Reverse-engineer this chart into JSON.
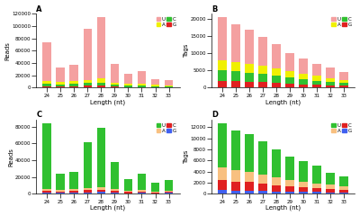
{
  "A": {
    "title": "A",
    "ylabel": "Reads",
    "xlabel": "Length (nt)",
    "lengths": [
      24,
      25,
      26,
      27,
      28,
      29,
      30,
      31,
      32,
      33
    ],
    "U": [
      63000,
      23000,
      26000,
      84000,
      100000,
      30000,
      17000,
      21000,
      10000,
      8000
    ],
    "A": [
      5000,
      4000,
      4500,
      5000,
      6000,
      3500,
      2500,
      2500,
      2000,
      1800
    ],
    "C": [
      4000,
      3500,
      4000,
      4500,
      5000,
      3000,
      2000,
      2200,
      1500,
      1200
    ],
    "G": [
      2000,
      2000,
      2500,
      3000,
      3500,
      1500,
      1200,
      1200,
      800,
      600
    ],
    "colors": {
      "U": "#F4A0A0",
      "A": "#F0F000",
      "C": "#30C030",
      "G": "#E02020"
    }
  },
  "B": {
    "title": "B",
    "ylabel": "Tags",
    "xlabel": "Length (nt)",
    "lengths": [
      24,
      25,
      26,
      27,
      28,
      29,
      30,
      31,
      32,
      33
    ],
    "U": [
      12500,
      11000,
      10000,
      8500,
      7000,
      5500,
      4500,
      3500,
      3000,
      2200
    ],
    "A": [
      3000,
      2800,
      2600,
      2400,
      2200,
      1800,
      1600,
      1400,
      1200,
      1000
    ],
    "C": [
      3000,
      2800,
      2600,
      2400,
      2000,
      1700,
      1400,
      1200,
      1000,
      800
    ],
    "G": [
      2000,
      1900,
      1800,
      1600,
      1400,
      1200,
      1000,
      800,
      600,
      500
    ],
    "colors": {
      "U": "#F4A0A0",
      "A": "#F0F000",
      "C": "#30C030",
      "G": "#E02020"
    }
  },
  "C": {
    "title": "C",
    "ylabel": "Reads",
    "xlabel": "Length (nt)",
    "lengths": [
      24,
      25,
      26,
      27,
      28,
      29,
      30,
      31,
      32,
      33
    ],
    "U": [
      78000,
      19000,
      21000,
      55000,
      71000,
      33000,
      14500,
      19500,
      11000,
      13500
    ],
    "A": [
      2000,
      1500,
      1800,
      2000,
      2500,
      1800,
      1200,
      1500,
      1000,
      1200
    ],
    "C": [
      2500,
      1800,
      2000,
      2500,
      3000,
      2000,
      1200,
      1800,
      1000,
      1300
    ],
    "G": [
      1500,
      1200,
      1500,
      1800,
      2000,
      1500,
      800,
      1200,
      700,
      900
    ],
    "colors": {
      "U": "#30C030",
      "A": "#F8C080",
      "C": "#E02020",
      "G": "#4060F0"
    }
  },
  "D": {
    "title": "D",
    "ylabel": "Tags",
    "xlabel": "Length (nt)",
    "lengths": [
      24,
      25,
      26,
      27,
      28,
      29,
      30,
      31,
      32,
      33
    ],
    "U": [
      8000,
      7200,
      6800,
      6000,
      5000,
      4200,
      3800,
      3200,
      2200,
      1800
    ],
    "A": [
      2200,
      2000,
      1800,
      1600,
      1400,
      1200,
      1000,
      900,
      800,
      700
    ],
    "C": [
      1800,
      1600,
      1500,
      1300,
      1100,
      900,
      800,
      700,
      600,
      500
    ],
    "G": [
      700,
      600,
      600,
      500,
      450,
      400,
      350,
      300,
      250,
      200
    ],
    "colors": {
      "U": "#30C030",
      "A": "#F8C080",
      "C": "#E02020",
      "G": "#4060F0"
    }
  }
}
